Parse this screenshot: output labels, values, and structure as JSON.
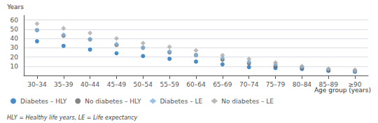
{
  "chart_data": {
    "type": "scatter",
    "categories": [
      "30–34",
      "35–39",
      "40–44",
      "45–49",
      "50–54",
      "55–59",
      "60–64",
      "65–69",
      "70–74",
      "75–79",
      "80–84",
      "85–89",
      "≥90"
    ],
    "series": [
      {
        "name": "Diabetes – HLY",
        "color": "#1a6fbc",
        "marker": "circle",
        "values": [
          37,
          32,
          28,
          24,
          21,
          18,
          15,
          12,
          9,
          8,
          7,
          5,
          4
        ]
      },
      {
        "name": "No diabetes – HLY",
        "color": "#666666",
        "marker": "circle",
        "values": [
          49,
          43,
          39,
          33,
          30,
          25,
          22,
          17,
          13,
          10,
          8,
          6,
          5
        ]
      },
      {
        "name": "Diabetes – LE",
        "color": "#7fb3e0",
        "marker": "diamond",
        "values": [
          49,
          44,
          39,
          34,
          30,
          26,
          22,
          19,
          15,
          12,
          9,
          7,
          5
        ]
      },
      {
        "name": "No diabetes – LE",
        "color": "#aaaaaa",
        "marker": "diamond",
        "values": [
          56,
          51,
          46,
          40,
          35,
          31,
          27,
          22,
          18,
          14,
          10,
          7,
          6
        ]
      }
    ],
    "ylabel": "Years",
    "xlabel": "Age group (years)",
    "ylim": [
      0,
      65
    ],
    "yticks": [
      10,
      20,
      30,
      40,
      50,
      60
    ],
    "grid": true,
    "legend": "lower left",
    "annotations": [
      "HLY = Healthy life years, LE = Life expectancy"
    ]
  }
}
